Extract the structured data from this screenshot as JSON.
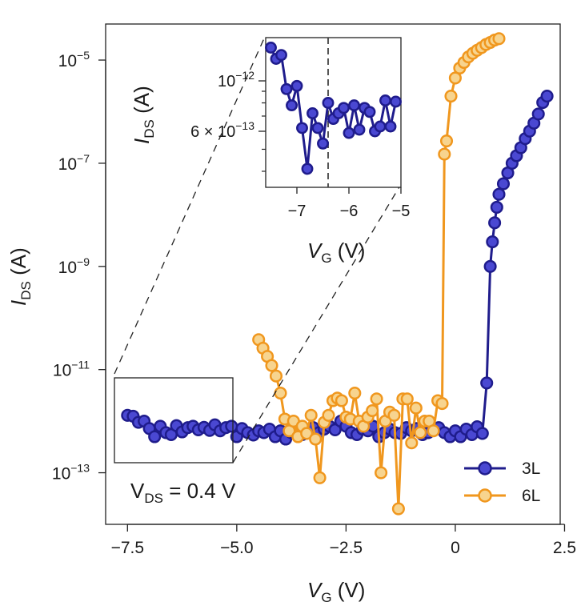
{
  "chart_data": [
    {
      "type": "scatter",
      "panel": "main",
      "y_scale": "log",
      "xlim": [
        -8.0,
        2.4
      ],
      "ylim": [
        1e-14,
        5e-05
      ],
      "x_ticks": [
        {
          "value": -7.5,
          "label": "−7.5"
        },
        {
          "value": -5.0,
          "label": "−5.0"
        },
        {
          "value": -2.5,
          "label": "−2.5"
        },
        {
          "value": 0,
          "label": "0"
        },
        {
          "value": 2.5,
          "label": "2.5"
        }
      ],
      "y_ticks": [
        {
          "value": 1e-05,
          "base": "10",
          "exp": "−5"
        },
        {
          "value": 1e-07,
          "base": "10",
          "exp": "−7"
        },
        {
          "value": 1e-09,
          "base": "10",
          "exp": "−9"
        },
        {
          "value": 1e-11,
          "base": "10",
          "exp": "−11"
        },
        {
          "value": 1e-13,
          "base": "10",
          "exp": "−13"
        }
      ],
      "xlabel": {
        "main": "V",
        "sub": "G",
        "unit": " (V)"
      },
      "ylabel": {
        "main": "I",
        "sub": "DS",
        "unit": " (A)"
      },
      "annotation": {
        "main": "V",
        "sub": "DS",
        "rest": " = 0.4 V"
      },
      "legend": {
        "position": "bottom-right"
      },
      "grid": false,
      "series": [
        {
          "name": "3L",
          "color": "#1f1c8c",
          "fill": "#4a48d2",
          "x": [
            -7.5,
            -7.37,
            -7.25,
            -7.12,
            -7.0,
            -6.88,
            -6.75,
            -6.62,
            -6.5,
            -6.38,
            -6.25,
            -6.12,
            -6.0,
            -5.88,
            -5.75,
            -5.62,
            -5.5,
            -5.38,
            -5.25,
            -5.12,
            -5.0,
            -4.88,
            -4.75,
            -4.62,
            -4.5,
            -4.38,
            -4.25,
            -4.12,
            -4.0,
            -3.88,
            -3.75,
            -3.62,
            -3.5,
            -3.38,
            -3.25,
            -3.12,
            -3.0,
            -2.88,
            -2.75,
            -2.62,
            -2.5,
            -2.38,
            -2.25,
            -2.12,
            -2.0,
            -1.88,
            -1.75,
            -1.62,
            -1.5,
            -1.38,
            -1.25,
            -1.12,
            -1.0,
            -0.88,
            -0.75,
            -0.62,
            -0.5,
            -0.38,
            -0.25,
            -0.12,
            0.0,
            0.12,
            0.25,
            0.38,
            0.5,
            0.62,
            0.72,
            0.8,
            0.85,
            0.9,
            0.95,
            1.0,
            1.1,
            1.2,
            1.3,
            1.4,
            1.5,
            1.6,
            1.7,
            1.8,
            1.9,
            2.0,
            2.1
          ],
          "y": [
            1.3e-12,
            1.25e-12,
            9.5e-13,
            1e-12,
            7.2e-13,
            5e-13,
            8e-13,
            6e-13,
            5.5e-13,
            8.2e-13,
            6.2e-13,
            7.5e-13,
            8e-13,
            6.8e-13,
            7.6e-13,
            6.6e-13,
            8.5e-13,
            6.5e-13,
            7.5e-13,
            8e-13,
            5e-13,
            7.2e-13,
            6e-13,
            5.4e-13,
            6.5e-13,
            6e-13,
            7e-13,
            5e-13,
            6.5e-13,
            4.5e-13,
            6e-13,
            7e-13,
            5.5e-13,
            6.5e-13,
            7.5e-13,
            6e-13,
            7e-13,
            8e-13,
            6.8e-13,
            1e-12,
            8e-13,
            6e-13,
            5.5e-13,
            7e-13,
            6.5e-13,
            8e-13,
            5e-13,
            6e-13,
            7e-13,
            6e-13,
            5.8e-13,
            7.5e-13,
            6.5e-13,
            7.2e-13,
            5.5e-13,
            6e-13,
            6.8e-13,
            7.5e-13,
            6e-13,
            5e-13,
            6.5e-13,
            5e-13,
            7e-13,
            5.5e-13,
            7.8e-13,
            5.8e-13,
            5.5e-12,
            1e-09,
            3e-09,
            7e-09,
            1.4e-08,
            2.5e-08,
            4e-08,
            6.5e-08,
            1e-07,
            1.4e-07,
            2e-07,
            3e-07,
            4.2e-07,
            6e-07,
            9e-07,
            1.5e-06,
            2e-06
          ]
        },
        {
          "name": "6L",
          "color": "#f0971e",
          "fill": "#f7d48f",
          "x": [
            -4.5,
            -4.4,
            -4.3,
            -4.2,
            -4.1,
            -4.0,
            -3.9,
            -3.8,
            -3.7,
            -3.6,
            -3.5,
            -3.4,
            -3.3,
            -3.2,
            -3.1,
            -3.0,
            -2.9,
            -2.8,
            -2.7,
            -2.6,
            -2.5,
            -2.4,
            -2.3,
            -2.2,
            -2.1,
            -2.0,
            -1.9,
            -1.8,
            -1.7,
            -1.6,
            -1.5,
            -1.4,
            -1.3,
            -1.2,
            -1.1,
            -1.0,
            -0.9,
            -0.8,
            -0.7,
            -0.6,
            -0.5,
            -0.4,
            -0.3,
            -0.25,
            -0.2,
            -0.1,
            0.0,
            0.1,
            0.2,
            0.3,
            0.4,
            0.5,
            0.6,
            0.7,
            0.8,
            0.9,
            1.0
          ],
          "y": [
            3.8e-11,
            2.6e-11,
            1.8e-11,
            1.2e-11,
            7.5e-12,
            3.5e-12,
            1.1e-12,
            6.5e-13,
            1e-12,
            5e-13,
            8e-13,
            5.8e-13,
            1.3e-12,
            4.5e-13,
            8e-14,
            9.5e-13,
            1.3e-12,
            2.5e-12,
            2.8e-12,
            2.5e-12,
            1.2e-12,
            1.1e-12,
            3.5e-12,
            1e-12,
            8e-13,
            1.2e-12,
            1.6e-12,
            2.7e-12,
            1e-13,
            1e-12,
            1.5e-12,
            1.3e-12,
            2e-14,
            2.7e-12,
            2.7e-12,
            3.8e-13,
            1.8e-12,
            6e-13,
            1e-12,
            1e-12,
            6.5e-13,
            2.5e-12,
            2.2e-12,
            1.5e-07,
            2.7e-07,
            2e-06,
            4.5e-06,
            7e-06,
            9e-06,
            1.15e-05,
            1.35e-05,
            1.55e-05,
            1.75e-05,
            2e-05,
            2.2e-05,
            2.45e-05,
            2.6e-05
          ]
        }
      ]
    },
    {
      "type": "scatter",
      "panel": "inset",
      "y_scale": "log",
      "xlim": [
        -7.6,
        -5.0
      ],
      "ylim": [
        3.4e-13,
        1.55e-12
      ],
      "x_ticks": [
        {
          "value": -7,
          "label": "−7"
        },
        {
          "value": -6,
          "label": "−6"
        },
        {
          "value": -5,
          "label": "−5"
        }
      ],
      "y_ticks": [
        {
          "value": 1e-12,
          "label": "10",
          "exp": "−12"
        },
        {
          "value": 6e-13,
          "label": "6 × 10",
          "exp": "−13"
        }
      ],
      "y_minor_ticks": [
        4e-13,
        5e-13,
        7e-13,
        8e-13,
        9e-13
      ],
      "xlabel": {
        "main": "V",
        "sub": "G",
        "unit": " (V)"
      },
      "ylabel": {
        "main": "I",
        "sub": "DS",
        "unit": " (A)"
      },
      "dashed_vline": -6.4,
      "grid": false,
      "series": [
        {
          "name": "3L",
          "color": "#1f1c8c",
          "fill": "#4a48d2",
          "x": [
            -7.5,
            -7.4,
            -7.3,
            -7.2,
            -7.1,
            -7.0,
            -6.9,
            -6.8,
            -6.7,
            -6.6,
            -6.5,
            -6.4,
            -6.3,
            -6.2,
            -6.1,
            -6.0,
            -5.9,
            -5.8,
            -5.7,
            -5.6,
            -5.5,
            -5.4,
            -5.3,
            -5.2,
            -5.1
          ],
          "y": [
            1.4e-12,
            1.25e-12,
            1.3e-12,
            9.2e-13,
            7.8e-13,
            9.5e-13,
            6.2e-13,
            4.1e-13,
            7.2e-13,
            6.2e-13,
            5.3e-13,
            8e-13,
            6.8e-13,
            7.2e-13,
            7.6e-13,
            5.9e-13,
            7.8e-13,
            6.1e-13,
            7.6e-13,
            7.3e-13,
            6e-13,
            6.3e-13,
            8.2e-13,
            6.3e-13,
            8.1e-13
          ]
        }
      ]
    }
  ],
  "legend_items": [
    {
      "label": "3L",
      "color": "#1f1c8c",
      "fill": "#4a48d2"
    },
    {
      "label": "6L",
      "color": "#f0971e",
      "fill": "#f7d48f"
    }
  ]
}
